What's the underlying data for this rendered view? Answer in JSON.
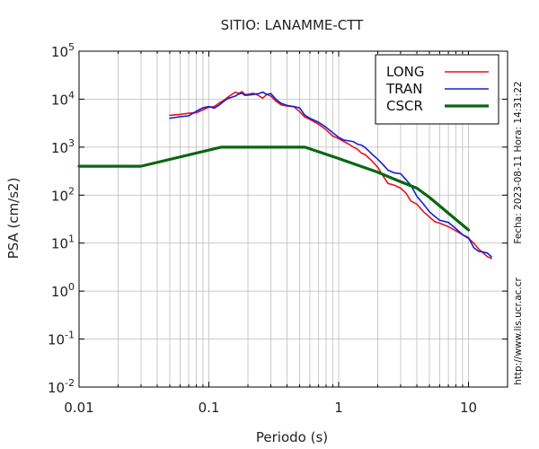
{
  "chart_data": {
    "type": "line",
    "title": "SITIO: LANAMME-CTT",
    "xlabel": "Periodo (s)",
    "ylabel": "PSA (cm/s2)",
    "xscale": "log",
    "yscale": "log",
    "xlim": [
      0.01,
      20
    ],
    "ylim": [
      0.01,
      100000
    ],
    "grid": true,
    "legend_position": "top-right",
    "x_tick_labels": [
      {
        "value": 0.01,
        "label": "0.01"
      },
      {
        "value": 0.1,
        "label": "0.1"
      },
      {
        "value": 1,
        "label": "1"
      },
      {
        "value": 10,
        "label": "10"
      }
    ],
    "y_tick_labels": [
      {
        "value": 0.01,
        "base": "10",
        "exp": "-2"
      },
      {
        "value": 0.1,
        "base": "10",
        "exp": "-1"
      },
      {
        "value": 1,
        "base": "10",
        "exp": "0"
      },
      {
        "value": 10,
        "base": "10",
        "exp": "1"
      },
      {
        "value": 100,
        "base": "10",
        "exp": "2"
      },
      {
        "value": 1000,
        "base": "10",
        "exp": "3"
      },
      {
        "value": 10000,
        "base": "10",
        "exp": "4"
      },
      {
        "value": 100000,
        "base": "10",
        "exp": "5"
      }
    ],
    "series": [
      {
        "name": "LONG",
        "color": "#e8121c",
        "width": 1.6,
        "points": [
          [
            0.05,
            4600
          ],
          [
            0.06,
            4800
          ],
          [
            0.07,
            5100
          ],
          [
            0.08,
            5200
          ],
          [
            0.09,
            6000
          ],
          [
            0.1,
            6800
          ],
          [
            0.11,
            7000
          ],
          [
            0.12,
            8300
          ],
          [
            0.13,
            9400
          ],
          [
            0.14,
            11000
          ],
          [
            0.15,
            12500
          ],
          [
            0.16,
            14000
          ],
          [
            0.17,
            13200
          ],
          [
            0.18,
            14300
          ],
          [
            0.19,
            12500
          ],
          [
            0.2,
            12700
          ],
          [
            0.22,
            13300
          ],
          [
            0.24,
            12000
          ],
          [
            0.26,
            10500
          ],
          [
            0.28,
            12600
          ],
          [
            0.3,
            11600
          ],
          [
            0.33,
            9000
          ],
          [
            0.36,
            7600
          ],
          [
            0.4,
            7200
          ],
          [
            0.45,
            7000
          ],
          [
            0.5,
            5500
          ],
          [
            0.55,
            4200
          ],
          [
            0.6,
            3800
          ],
          [
            0.7,
            3000
          ],
          [
            0.8,
            2300
          ],
          [
            0.9,
            1700
          ],
          [
            1.0,
            1500
          ],
          [
            1.1,
            1300
          ],
          [
            1.2,
            1150
          ],
          [
            1.3,
            1000
          ],
          [
            1.4,
            900
          ],
          [
            1.5,
            750
          ],
          [
            1.6,
            700
          ],
          [
            1.8,
            520
          ],
          [
            2.0,
            380
          ],
          [
            2.2,
            250
          ],
          [
            2.4,
            175
          ],
          [
            2.7,
            160
          ],
          [
            3.0,
            140
          ],
          [
            3.3,
            110
          ],
          [
            3.6,
            75
          ],
          [
            4.0,
            65
          ],
          [
            4.5,
            45
          ],
          [
            5.0,
            35
          ],
          [
            5.5,
            28
          ],
          [
            6.0,
            26
          ],
          [
            7.0,
            22
          ],
          [
            8.0,
            18
          ],
          [
            9.0,
            15
          ],
          [
            10.0,
            12.5
          ],
          [
            11.0,
            10
          ],
          [
            12.0,
            7.5
          ],
          [
            13.0,
            6.2
          ],
          [
            14.0,
            5.2
          ],
          [
            15.0,
            4.8
          ]
        ]
      },
      {
        "name": "TRAN",
        "color": "#1020d8",
        "width": 1.6,
        "points": [
          [
            0.05,
            4000
          ],
          [
            0.06,
            4300
          ],
          [
            0.07,
            4500
          ],
          [
            0.08,
            5600
          ],
          [
            0.09,
            6600
          ],
          [
            0.1,
            7000
          ],
          [
            0.11,
            6500
          ],
          [
            0.12,
            7500
          ],
          [
            0.13,
            9000
          ],
          [
            0.14,
            10300
          ],
          [
            0.15,
            11000
          ],
          [
            0.16,
            11600
          ],
          [
            0.17,
            12800
          ],
          [
            0.18,
            13300
          ],
          [
            0.19,
            12000
          ],
          [
            0.2,
            12100
          ],
          [
            0.22,
            12500
          ],
          [
            0.24,
            13000
          ],
          [
            0.26,
            14000
          ],
          [
            0.28,
            12500
          ],
          [
            0.3,
            13100
          ],
          [
            0.33,
            9800
          ],
          [
            0.36,
            8200
          ],
          [
            0.4,
            7400
          ],
          [
            0.45,
            7000
          ],
          [
            0.5,
            6600
          ],
          [
            0.55,
            4600
          ],
          [
            0.6,
            4000
          ],
          [
            0.7,
            3300
          ],
          [
            0.8,
            2600
          ],
          [
            0.9,
            2000
          ],
          [
            1.0,
            1600
          ],
          [
            1.1,
            1400
          ],
          [
            1.2,
            1350
          ],
          [
            1.3,
            1300
          ],
          [
            1.4,
            1150
          ],
          [
            1.5,
            1100
          ],
          [
            1.6,
            980
          ],
          [
            1.8,
            720
          ],
          [
            2.0,
            560
          ],
          [
            2.2,
            430
          ],
          [
            2.4,
            330
          ],
          [
            2.7,
            290
          ],
          [
            3.0,
            280
          ],
          [
            3.3,
            210
          ],
          [
            3.6,
            160
          ],
          [
            4.0,
            95
          ],
          [
            4.5,
            65
          ],
          [
            5.0,
            45
          ],
          [
            5.5,
            36
          ],
          [
            6.0,
            30
          ],
          [
            7.0,
            27
          ],
          [
            8.0,
            20
          ],
          [
            9.0,
            15
          ],
          [
            10.0,
            13
          ],
          [
            11.0,
            8
          ],
          [
            12.0,
            6.7
          ],
          [
            13.0,
            6.5
          ],
          [
            14.0,
            6.2
          ],
          [
            15.0,
            5.2
          ]
        ]
      },
      {
        "name": "CSCR",
        "color": "#0a6610",
        "width": 3.2,
        "points": [
          [
            0.01,
            400
          ],
          [
            0.03,
            400
          ],
          [
            0.125,
            1000
          ],
          [
            0.55,
            1000
          ],
          [
            1.0,
            580
          ],
          [
            2.0,
            300
          ],
          [
            3.0,
            190
          ],
          [
            4.0,
            140
          ],
          [
            5.0,
            90
          ],
          [
            7.0,
            42
          ],
          [
            10.0,
            18.8
          ]
        ]
      }
    ]
  },
  "side_notes": {
    "url": "http://www.lis.ucr.ac.cr",
    "date_time": "Fecha: 2023-08-11  Hora: 14:31:22"
  }
}
